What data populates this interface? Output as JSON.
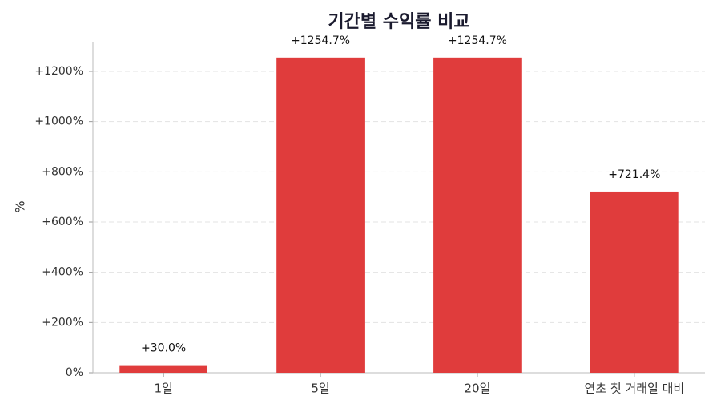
{
  "chart_data": {
    "type": "bar",
    "title": "기간별 수익률 비교",
    "y_label": "%",
    "categories": [
      "1일",
      "5일",
      "20일",
      "연초 첫 거래일 대비"
    ],
    "values": [
      30.0,
      1254.7,
      1254.7,
      721.4
    ],
    "value_labels": [
      "+30.0%",
      "+1254.7%",
      "+1254.7%",
      "+721.4%"
    ],
    "color": "#e03c3c",
    "ylim": [
      0,
      1318
    ],
    "yticks": [
      {
        "value": 0,
        "label": "0%"
      },
      {
        "value": 200,
        "label": "+200%"
      },
      {
        "value": 400,
        "label": "+400%"
      },
      {
        "value": 600,
        "label": "+600%"
      },
      {
        "value": 800,
        "label": "+800%"
      },
      {
        "value": 1000,
        "label": "+1000%"
      },
      {
        "value": 1200,
        "label": "+1200%"
      }
    ],
    "grid": true
  }
}
